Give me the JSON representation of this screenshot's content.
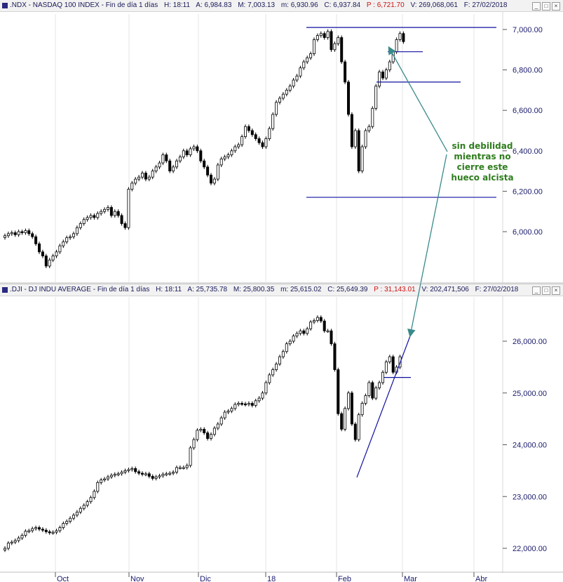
{
  "panels": [
    {
      "id": "ndx",
      "header": {
        "ticker": ".NDX - NASDAQ 100 INDEX - Fin de día 1 días",
        "h": "H: 18:11",
        "a": "A: 6,984.83",
        "m": "M: 7,003.13",
        "m_low": "m: 6,930.96",
        "c": "C: 6,937.84",
        "p": "P : 6,721.70",
        "v": "V: 269,068,061",
        "f": "F: 27/02/2018"
      }
    },
    {
      "id": "dji",
      "header": {
        "ticker": ".DJI - DJ INDU AVERAGE - Fin de día 1 días",
        "h": "H: 18:11",
        "a": "A: 25,735.78",
        "m": "M: 25,800.35",
        "m_low": "m: 25,615.02",
        "c": "C: 25,649.39",
        "p": "P : 31,143.01",
        "v": "V: 202,471,506",
        "f": "F: 27/02/2018"
      }
    }
  ],
  "annotation": {
    "lines": [
      "sin debilidad",
      "mientras no",
      "cierre este",
      "hueco alcista"
    ],
    "color": "#2f7d1e"
  },
  "x_axis": {
    "labels": [
      "Oct",
      "Nov",
      "Dic",
      "18",
      "Feb",
      "Mar",
      "Abr"
    ]
  },
  "colors": {
    "axis_text": "#1a1a6e",
    "candle": "#000000",
    "trendline_blue": "#1010a0",
    "arrow_teal": "#3a8a8a",
    "annotation_green": "#2f7d1e",
    "header_red": "#d01010"
  },
  "chart_data": [
    {
      "id": "ndx",
      "type": "candlestick",
      "y_ticks": [
        "6,000.00",
        "6,200.00",
        "6,400.00",
        "6,600.00",
        "6,800.00",
        "7,000.00"
      ],
      "ylim": [
        5810,
        7030
      ],
      "closes": [
        5980,
        5990,
        5995,
        5985,
        6000,
        5995,
        6005,
        5990,
        5975,
        5940,
        5900,
        5880,
        5830,
        5860,
        5880,
        5900,
        5930,
        5950,
        5970,
        5975,
        5990,
        6020,
        6040,
        6060,
        6070,
        6080,
        6070,
        6090,
        6100,
        6110,
        6120,
        6080,
        6100,
        6080,
        6040,
        6020,
        6210,
        6240,
        6260,
        6270,
        6290,
        6260,
        6270,
        6300,
        6320,
        6340,
        6380,
        6350,
        6300,
        6320,
        6350,
        6370,
        6400,
        6380,
        6410,
        6420,
        6400,
        6350,
        6320,
        6280,
        6240,
        6260,
        6330,
        6360,
        6370,
        6380,
        6400,
        6420,
        6430,
        6470,
        6520,
        6500,
        6480,
        6460,
        6440,
        6420,
        6460,
        6510,
        6580,
        6640,
        6660,
        6680,
        6700,
        6720,
        6750,
        6770,
        6810,
        6840,
        6860,
        6880,
        6950,
        6970,
        6980,
        6960,
        6990,
        6900,
        6930,
        6960,
        6840,
        6740,
        6580,
        6420,
        6500,
        6300,
        6420,
        6500,
        6520,
        6610,
        6720,
        6790,
        6760,
        6800,
        6840,
        6890,
        6950,
        6980,
        6940
      ],
      "swing_high": 7010,
      "gap_level_top": 6890,
      "gap_level_bottom": 6740,
      "swing_low": 6170
    },
    {
      "id": "dji",
      "type": "candlestick",
      "y_ticks": [
        "22,000.00",
        "23,000.00",
        "24,000.00",
        "25,000.00",
        "26,000.00"
      ],
      "ylim": [
        21550,
        26780
      ],
      "closes": [
        22000,
        22100,
        22120,
        22150,
        22200,
        22250,
        22330,
        22340,
        22380,
        22400,
        22370,
        22350,
        22320,
        22300,
        22310,
        22340,
        22400,
        22480,
        22520,
        22580,
        22640,
        22700,
        22770,
        22830,
        22900,
        22980,
        23100,
        23270,
        23320,
        23340,
        23380,
        23410,
        23430,
        23440,
        23470,
        23500,
        23520,
        23540,
        23480,
        23450,
        23430,
        23440,
        23390,
        23350,
        23380,
        23400,
        23430,
        23440,
        23450,
        23470,
        23560,
        23560,
        23560,
        23600,
        23940,
        24100,
        24280,
        24300,
        24230,
        24120,
        24200,
        24320,
        24400,
        24520,
        24630,
        24650,
        24700,
        24780,
        24800,
        24790,
        24780,
        24800,
        24760,
        24850,
        24900,
        25000,
        25200,
        25350,
        25450,
        25560,
        25700,
        25800,
        25950,
        26000,
        26100,
        26150,
        26200,
        26150,
        26240,
        26370,
        26400,
        26460,
        26390,
        26200,
        26200,
        25950,
        25450,
        24600,
        24300,
        24700,
        25000,
        24400,
        24100,
        24580,
        24800,
        24950,
        25200,
        24900,
        25100,
        25200,
        25400,
        25600,
        25700,
        25400,
        25500,
        25700
      ],
      "swing_high": 26600,
      "gap_level": 25300,
      "trend_low": 23370
    }
  ]
}
